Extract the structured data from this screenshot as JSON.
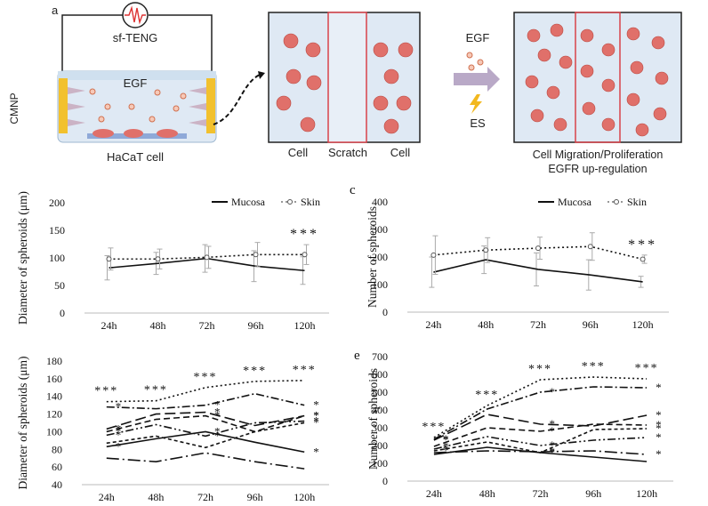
{
  "panel_a": {
    "letter": "a",
    "device_label": "sf-TENG",
    "electrode_label": "CMNP",
    "growth_factor_label": "EGF",
    "cell_label": "HaCaT cell",
    "scratch_labels": [
      "Cell",
      "Scratch",
      "Cell"
    ],
    "stimulus_egf": "EGF",
    "stimulus_es": "ES",
    "result_line1": "Cell Migration/Proliferation",
    "result_line2": "EGFR up-regulation",
    "colors": {
      "cell": "#e0706a",
      "chamber": "#dfe9f4",
      "electrode": "#f2c12e",
      "scratch_border": "#d9434a"
    }
  },
  "chart_data": [
    {
      "id": "b",
      "letter": "",
      "type": "line",
      "categories": [
        "24h",
        "48h",
        "72h",
        "96h",
        "120h"
      ],
      "ylabel": "Diameter of spheroids (μm)",
      "yticks": [
        0,
        50,
        100,
        150,
        200
      ],
      "ylim": [
        0,
        200
      ],
      "legend": [
        "Mucosa",
        "Skin"
      ],
      "legend_position": "top-right",
      "annotation": "***",
      "series": [
        {
          "name": "Mucosa",
          "style": "solid",
          "values": [
            82,
            90,
            99,
            85,
            77
          ],
          "err": [
            22,
            20,
            25,
            28,
            25
          ]
        },
        {
          "name": "Skin",
          "style": "dotted-marker",
          "values": [
            98,
            98,
            101,
            106,
            106
          ],
          "err": [
            20,
            18,
            20,
            22,
            18
          ]
        }
      ]
    },
    {
      "id": "c",
      "letter": "c",
      "type": "line",
      "categories": [
        "24h",
        "48h",
        "72h",
        "96h",
        "120h"
      ],
      "ylabel": "Number of spheroids",
      "yticks": [
        0,
        100,
        200,
        300,
        400
      ],
      "ylim": [
        0,
        400
      ],
      "legend": [
        "Mucosa",
        "Skin"
      ],
      "legend_position": "top-right",
      "annotation": "***",
      "series": [
        {
          "name": "Mucosa",
          "style": "solid",
          "values": [
            145,
            190,
            155,
            135,
            110
          ],
          "err": [
            55,
            50,
            60,
            55,
            20
          ]
        },
        {
          "name": "Skin",
          "style": "dotted-marker",
          "values": [
            207,
            225,
            232,
            238,
            192
          ],
          "err": [
            70,
            45,
            40,
            50,
            15
          ]
        }
      ]
    },
    {
      "id": "d",
      "letter": "",
      "type": "line",
      "categories": [
        "24h",
        "48h",
        "72h",
        "96h",
        "120h"
      ],
      "ylabel": "Diameter of spheroids (μm)",
      "yticks": [
        40,
        60,
        80,
        100,
        120,
        140,
        160,
        180
      ],
      "ylim": [
        40,
        180
      ],
      "legend_position": "none",
      "series": [
        {
          "style": "dotted",
          "values": [
            134,
            135,
            150,
            157,
            158
          ]
        },
        {
          "style": "dashdot",
          "values": [
            128,
            126,
            130,
            143,
            130
          ]
        },
        {
          "style": "longdash",
          "values": [
            103,
            120,
            122,
            107,
            118
          ]
        },
        {
          "style": "dash",
          "values": [
            100,
            114,
            118,
            100,
            118
          ]
        },
        {
          "style": "dashdotdot",
          "values": [
            96,
            108,
            95,
            110,
            112
          ]
        },
        {
          "style": "solid",
          "values": [
            83,
            92,
            100,
            88,
            77
          ]
        },
        {
          "style": "shortdash",
          "values": [
            87,
            95,
            82,
            100,
            110
          ]
        },
        {
          "style": "longdashdot",
          "values": [
            70,
            66,
            76,
            66,
            58
          ]
        }
      ],
      "annotations": [
        "***",
        "***",
        "***",
        "***",
        "***",
        "*",
        "*",
        "*",
        "*",
        "*",
        "*",
        "*",
        "*",
        "*",
        "*",
        "*",
        "*",
        "*",
        "*",
        "*",
        "*"
      ]
    },
    {
      "id": "e",
      "letter": "e",
      "type": "line",
      "categories": [
        "24h",
        "48h",
        "72h",
        "96h",
        "120h"
      ],
      "ylabel": "Number of spheroids",
      "yticks": [
        0,
        100,
        200,
        300,
        400,
        500,
        600,
        700
      ],
      "ylim": [
        0,
        700
      ],
      "legend_position": "none",
      "series": [
        {
          "style": "dotted",
          "values": [
            245,
            425,
            570,
            585,
            575
          ]
        },
        {
          "style": "dashdot",
          "values": [
            235,
            405,
            500,
            530,
            525
          ]
        },
        {
          "style": "longdash",
          "values": [
            230,
            375,
            320,
            310,
            370
          ]
        },
        {
          "style": "dash",
          "values": [
            195,
            300,
            280,
            320,
            315
          ]
        },
        {
          "style": "dashdotdot",
          "values": [
            180,
            250,
            200,
            230,
            245
          ]
        },
        {
          "style": "shortdash",
          "values": [
            170,
            220,
            160,
            290,
            295
          ]
        },
        {
          "style": "longdashdot",
          "values": [
            160,
            170,
            165,
            170,
            150
          ]
        },
        {
          "style": "solid",
          "values": [
            150,
            190,
            160,
            135,
            110
          ]
        }
      ],
      "annotations": [
        "***",
        "***",
        "***",
        "***",
        "***",
        "*",
        "*",
        "*",
        "*",
        "*",
        "*",
        "*",
        "*",
        "*",
        "*",
        "*",
        "*",
        "*",
        "*",
        "*",
        "*",
        "*"
      ]
    }
  ]
}
